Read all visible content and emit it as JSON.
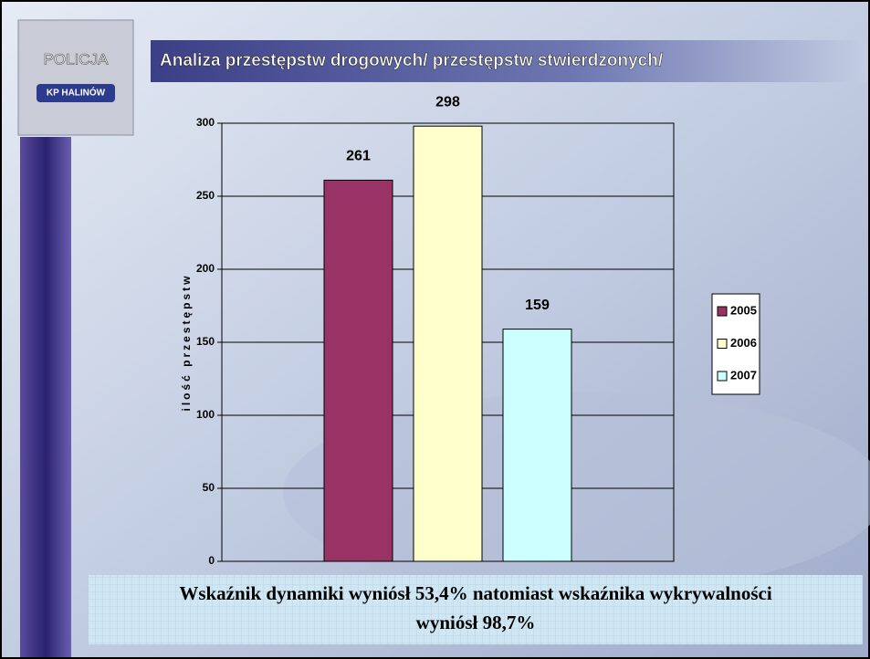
{
  "logo": [
    "POLICJA",
    "KP HALINÓW"
  ],
  "footer": [
    "Wskaźnik dynamiki wyniósł 53,4% natomiast wskaźnika wykrywalności",
    "wyniósł 98,7%"
  ],
  "chart_data": {
    "type": "bar",
    "title": "Analiza przestępstw drogowych/ przestępstw stwierdzonych/",
    "y_label": "ilość przestępstw",
    "categories": [
      null
    ],
    "series": [
      {
        "name": "2005",
        "color": "#993366",
        "values": [
          261
        ]
      },
      {
        "name": "2006",
        "color": "#ffffcc",
        "values": [
          298
        ]
      },
      {
        "name": "2007",
        "color": "#ccffff",
        "values": [
          159
        ]
      }
    ],
    "ylim": [
      0,
      300
    ],
    "yticks": [
      0,
      50,
      100,
      150,
      200,
      250,
      300
    ],
    "grid": true,
    "legend": "right"
  }
}
